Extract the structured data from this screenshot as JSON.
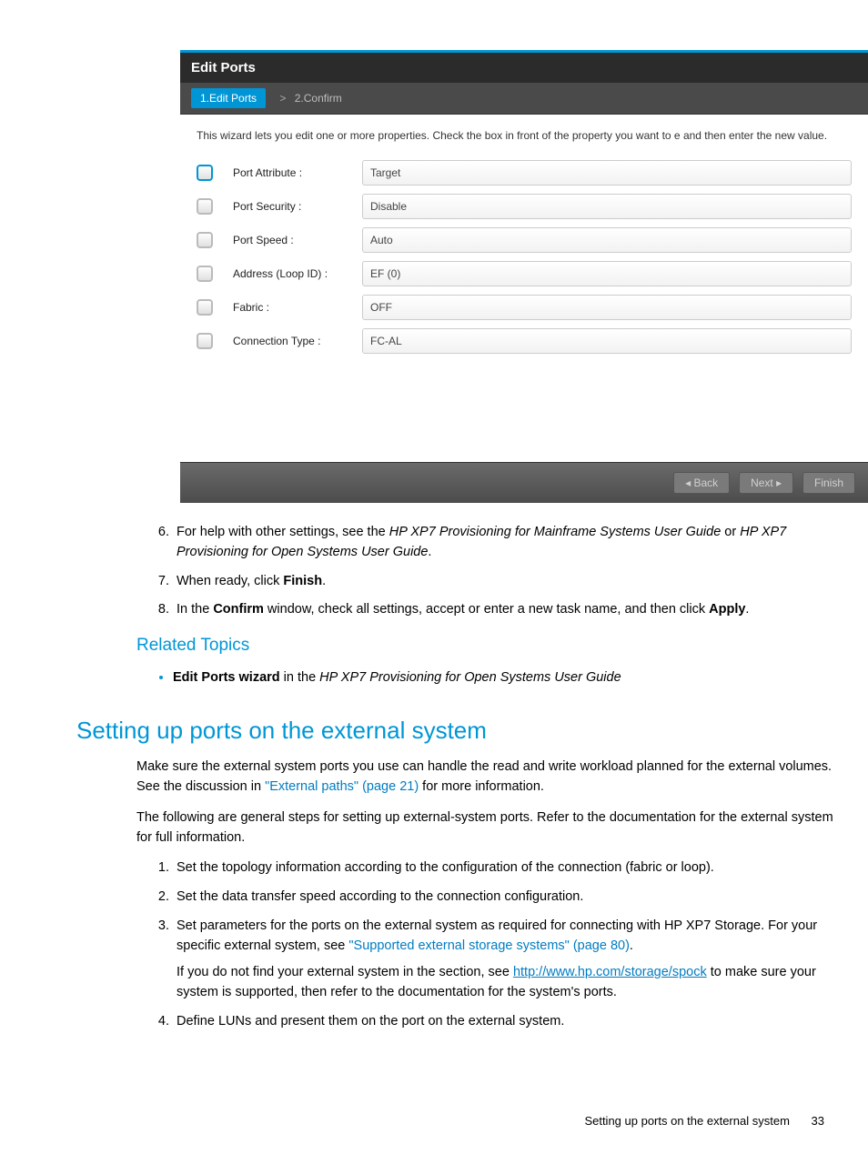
{
  "dialog": {
    "title": "Edit Ports",
    "steps": {
      "active": "1.Edit Ports",
      "sep": ">",
      "next": "2.Confirm"
    },
    "description": "This wizard lets you edit one or more properties. Check the box in front of the property you want to e and then enter the new value.",
    "rows": [
      {
        "label": "Port Attribute :",
        "value": "Target",
        "checked": true
      },
      {
        "label": "Port Security :",
        "value": "Disable",
        "checked": false
      },
      {
        "label": "Port Speed :",
        "value": "Auto",
        "checked": false
      },
      {
        "label": "Address (Loop ID) :",
        "value": "EF (0)",
        "checked": false
      },
      {
        "label": "Fabric :",
        "value": "OFF",
        "checked": false
      },
      {
        "label": "Connection Type :",
        "value": "FC-AL",
        "checked": false
      }
    ],
    "buttons": {
      "back": "◂ Back",
      "next": "Next ▸",
      "finish": "Finish"
    },
    "colors": {
      "accent": "#0096d6",
      "header_bg": "#2b2b2b",
      "body_bg": "#ffffff",
      "footer_bg": "#5a5a5a"
    }
  },
  "ol6": {
    "pre": "For help with other settings, see the ",
    "i1": "HP XP7 Provisioning for Mainframe Systems User Guide",
    "mid": " or ",
    "i2": "HP XP7 Provisioning for Open Systems User Guide",
    "post": "."
  },
  "ol7": {
    "pre": "When ready, click ",
    "b": "Finish",
    "post": "."
  },
  "ol8": {
    "pre": "In the ",
    "b1": "Confirm",
    "mid": " window, check all settings, accept or enter a new task name, and then click ",
    "b2": "Apply",
    "post": "."
  },
  "related_heading": "Related Topics",
  "related_item": {
    "b": "Edit Ports wizard",
    "mid": " in the ",
    "i": "HP XP7 Provisioning for Open Systems User Guide"
  },
  "section_heading": "Setting up ports on the external system",
  "p1": {
    "a": "Make sure the external system ports you use can handle the read and write workload planned for the external volumes. See the discussion in ",
    "link": "\"External paths\" (page 21)",
    "b": " for more information."
  },
  "p2": "The following are general steps for setting up external-system ports. Refer to the documentation for the external system for full information.",
  "s1": "Set the topology information according to the configuration of the connection (fabric or loop).",
  "s2": "Set the data transfer speed according to the connection configuration.",
  "s3": {
    "a": "Set parameters for the ports on the external system as required for connecting with HP XP7 Storage. For your specific external system, see ",
    "link": "\"Supported external storage systems\" (page 80)",
    "b": "."
  },
  "s3p": {
    "a": "If you do not find your external system in the section, see ",
    "url": "http://www.hp.com/storage/spock",
    "b": " to make sure your system is supported, then refer to the documentation for the system's ports."
  },
  "s4": "Define LUNs and present them on the port on the external system.",
  "footer": {
    "title": "Setting up ports on the external system",
    "page": "33"
  }
}
